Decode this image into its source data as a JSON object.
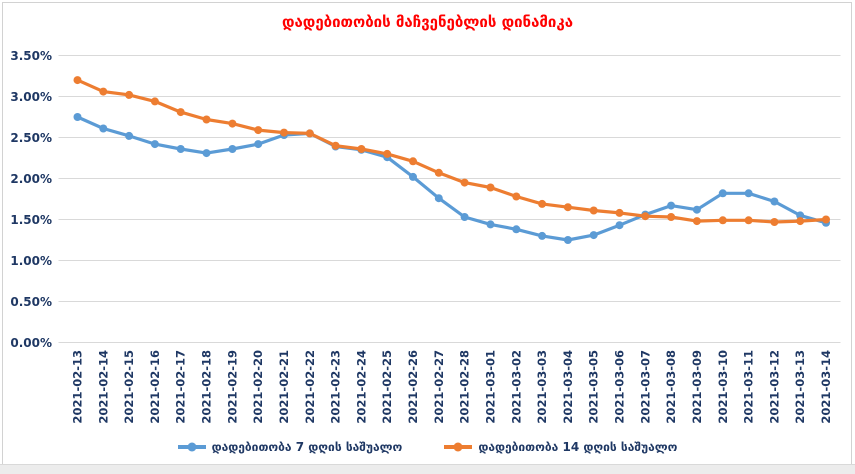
{
  "title": "დადებითობის მაჩვენებლის დინამიკა",
  "colors": {
    "title": "#FF0000",
    "axis_text": "#1F3864",
    "gridline": "#D9D9D9",
    "series_7day": "#5B9BD5",
    "series_14day": "#ED7D31"
  },
  "y_axis": {
    "tick_labels": [
      "3.50%",
      "3.00%",
      "2.50%",
      "2.00%",
      "1.50%",
      "1.00%",
      "0.50%",
      "0.00%"
    ],
    "max": 3.5,
    "min": 0,
    "step": 0.5
  },
  "legend": {
    "items": [
      {
        "key": "7day",
        "label": "დადებითობა 7 დღის საშუალო"
      },
      {
        "key": "14day",
        "label": "დადებითობა 14 დღის საშუალო"
      }
    ]
  },
  "chart_data": {
    "type": "line",
    "title": "დადებითობის მაჩვენებლის დინამიკა",
    "categories": [
      "2021-02-13",
      "2021-02-14",
      "2021-02-15",
      "2021-02-16",
      "2021-02-17",
      "2021-02-18",
      "2021-02-19",
      "2021-02-20",
      "2021-02-21",
      "2021-02-22",
      "2021-02-23",
      "2021-02-24",
      "2021-02-25",
      "2021-02-26",
      "2021-02-27",
      "2021-02-28",
      "2021-03-01",
      "2021-03-02",
      "2021-03-03",
      "2021-03-04",
      "2021-03-05",
      "2021-03-06",
      "2021-03-07",
      "2021-03-08",
      "2021-03-09",
      "2021-03-10",
      "2021-03-11",
      "2021-03-12",
      "2021-03-13",
      "2021-03-14"
    ],
    "series": [
      {
        "key": "7day",
        "name": "დადებითობა 7 დღის საშუალო",
        "color": "#5B9BD5",
        "values": [
          2.75,
          2.61,
          2.52,
          2.42,
          2.36,
          2.31,
          2.36,
          2.42,
          2.53,
          2.55,
          2.39,
          2.35,
          2.26,
          2.02,
          1.76,
          1.53,
          1.44,
          1.38,
          1.3,
          1.25,
          1.31,
          1.43,
          1.56,
          1.67,
          1.62,
          1.82,
          1.82,
          1.72,
          1.55,
          1.46
        ]
      },
      {
        "key": "14day",
        "name": "დადებითობა 14 დღის საშუალო",
        "color": "#ED7D31",
        "values": [
          3.2,
          3.06,
          3.02,
          2.94,
          2.81,
          2.72,
          2.67,
          2.59,
          2.56,
          2.55,
          2.4,
          2.36,
          2.3,
          2.21,
          2.07,
          1.95,
          1.89,
          1.78,
          1.69,
          1.65,
          1.61,
          1.58,
          1.54,
          1.53,
          1.48,
          1.49,
          1.49,
          1.47,
          1.48,
          1.5
        ]
      }
    ],
    "ylim": [
      0,
      3.5
    ],
    "y_tick_step": 0.5,
    "y_format": "percent",
    "grid": "horizontal",
    "legend_position": "bottom"
  }
}
